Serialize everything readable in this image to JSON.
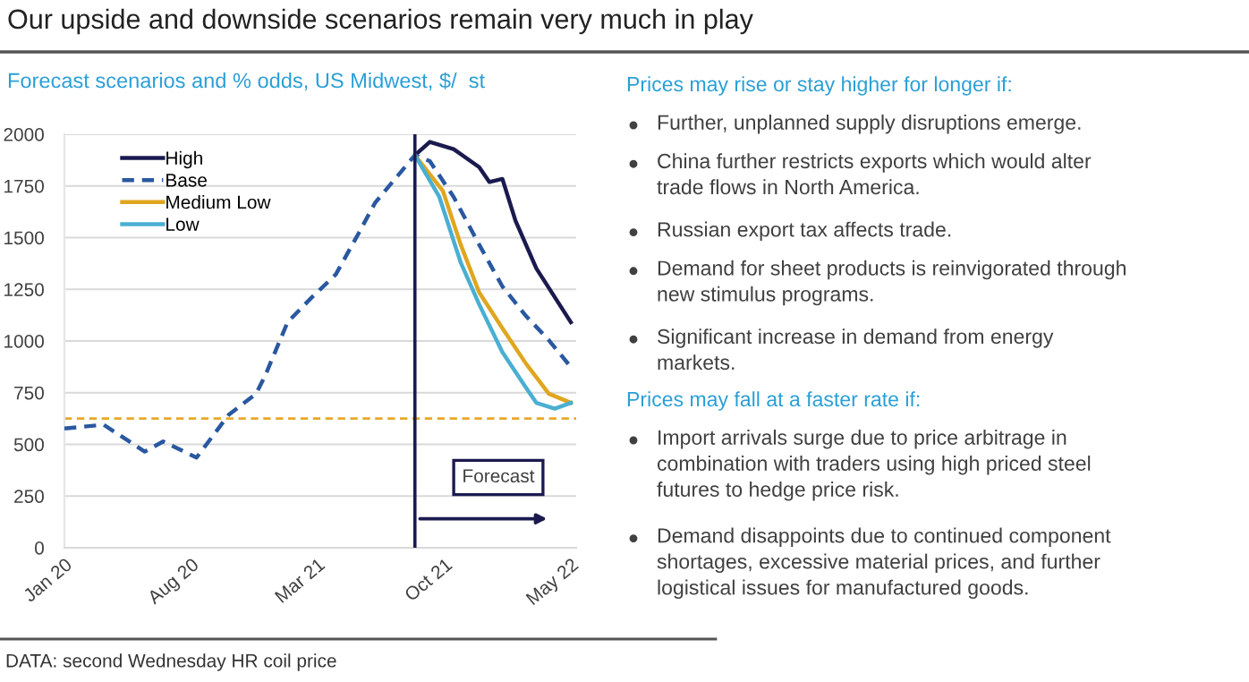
{
  "chart_data": [
    {
      "type": "line",
      "title": "Our upside and downside scenarios remain very much in play",
      "subtitle": "Forecast scenarios and % odds, US Midwest, $/  st",
      "series": [
        {
          "name": "High",
          "color": "#1b1a4f",
          "line_style": "solid",
          "x": [
            "2021-08-12",
            "2021-09-06",
            "2021-10-16",
            "2021-11-28",
            "2021-12-15",
            "2022-01-06",
            "2022-01-28",
            "2022-03-04",
            "2022-05-01"
          ],
          "values": [
            1899,
            1963,
            1928,
            1841,
            1769,
            1784,
            1582,
            1351,
            1091
          ]
        },
        {
          "name": "Base",
          "color": "#2a58a0",
          "line_style": "dashed",
          "x": [
            "2020-01-01",
            "2020-03-07",
            "2020-05-15",
            "2020-06-15",
            "2020-08-10",
            "2020-10-03",
            "2020-11-18",
            "2020-12-03",
            "2021-01-10",
            "2021-02-18",
            "2021-04-01",
            "2021-05-10",
            "2021-06-06",
            "2021-08-12",
            "2021-09-06",
            "2021-10-16",
            "2021-11-28",
            "2022-01-06",
            "2022-02-15",
            "2022-03-25",
            "2022-05-01"
          ],
          "values": [
            577,
            595,
            465,
            514,
            436,
            643,
            745,
            830,
            1091,
            1206,
            1322,
            1524,
            1668,
            1899,
            1870,
            1697,
            1466,
            1264,
            1120,
            1004,
            874
          ]
        },
        {
          "name": "Medium Low",
          "color": "#e0a620",
          "line_style": "solid",
          "x": [
            "2021-08-12",
            "2021-09-28",
            "2021-10-28",
            "2021-11-28",
            "2022-01-06",
            "2022-02-15",
            "2022-03-25",
            "2022-05-01"
          ],
          "values": [
            1899,
            1726,
            1466,
            1235,
            1062,
            889,
            745,
            701
          ]
        },
        {
          "name": "Low",
          "color": "#4aafd2",
          "line_style": "solid",
          "x": [
            "2021-08-12",
            "2021-09-22",
            "2021-10-28",
            "2021-11-28",
            "2022-01-06",
            "2022-02-15",
            "2022-03-04",
            "2022-04-04",
            "2022-05-01"
          ],
          "values": [
            1899,
            1697,
            1379,
            1177,
            946,
            773,
            701,
            673,
            701
          ]
        }
      ],
      "xlim": [
        "2020-01-01",
        "2022-05-10"
      ],
      "xticks": [
        {
          "value": "2020-01-01",
          "label": "Jan 20"
        },
        {
          "value": "2020-08-01",
          "label": "Aug 20"
        },
        {
          "value": "2021-03-01",
          "label": "Mar 21"
        },
        {
          "value": "2021-10-01",
          "label": "Oct 21"
        },
        {
          "value": "2022-05-01",
          "label": "May 22"
        }
      ],
      "ylim": [
        0,
        2000
      ],
      "yticks": [
        0,
        250,
        500,
        750,
        1000,
        1250,
        1500,
        1750,
        2000
      ],
      "ref_lines": [
        {
          "axis": "x",
          "value": "2021-08-12",
          "color": "#1b1a4f",
          "line_style": "solid"
        },
        {
          "axis": "y",
          "value": 625,
          "color": "#e8a82a",
          "line_style": "dashed"
        }
      ],
      "annotations": [
        "Forecast",
        "DATA: second Wednesday HR coil price"
      ],
      "grid": "y",
      "legend": "top left",
      "marker": "none"
    },
    {
      "type": "other",
      "title": "Prices may rise or stay higher for longer if:",
      "annotations": [
        "Further, unplanned supply disruptions emerge.",
        "China further restricts exports which would alter\ntrade flows in North America.",
        "Russian export tax affects trade.",
        "Demand for sheet products is reinvigorated through\nnew stimulus programs.",
        "Significant increase in demand from energy\nmarkets."
      ]
    },
    {
      "type": "other",
      "title": "Prices may fall at a faster rate if:",
      "annotations": [
        "Import arrivals surge due to price arbitrage in\ncombination with traders using high priced steel\nfutures to hedge price risk.",
        "Demand disappoints due to continued component\nshortages, excessive material prices, and further\nlogistical issues for manufactured goods."
      ]
    }
  ]
}
